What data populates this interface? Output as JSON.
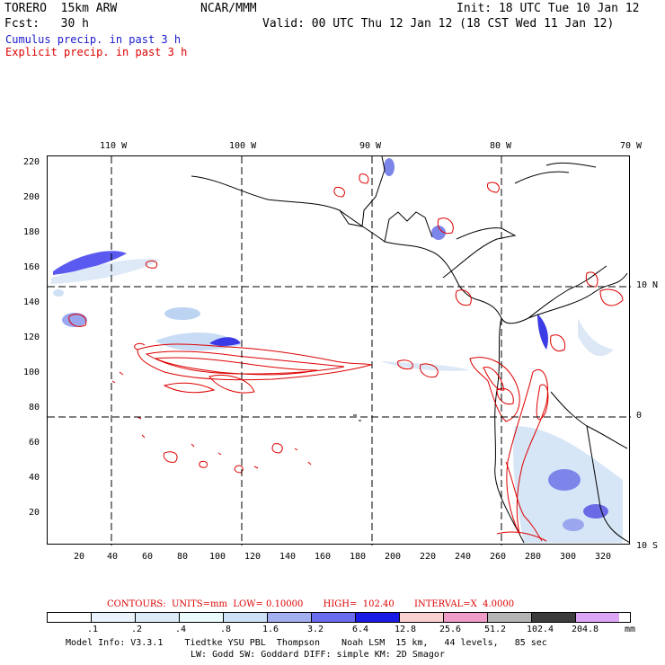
{
  "header": {
    "model": "TORERO  15km ARW",
    "institution": "NCAR/MMM",
    "init": "Init: 18 UTC Tue 10 Jan 12",
    "fcst": "Fcst:   30 h",
    "valid": "Valid: 00 UTC Thu 12 Jan 12 (18 CST Wed 11 Jan 12)",
    "legend_cumulus": "Cumulus precip. in past 3 h",
    "legend_explicit": "Explicit precip. in past 3 h"
  },
  "colors": {
    "cumulus": "#1a1acc",
    "explicit": "#dd0000",
    "land": "#000000",
    "grid": "#000000"
  },
  "map_axes": {
    "lon_labels": [
      "110 W",
      "100 W",
      "90 W",
      "80 W",
      "70 W"
    ],
    "lat_labels": [
      "10 N",
      "0",
      "10 S"
    ],
    "x_ticks": [
      "20",
      "40",
      "60",
      "80",
      "100",
      "120",
      "140",
      "160",
      "180",
      "200",
      "220",
      "240",
      "260",
      "280",
      "300",
      "320"
    ],
    "y_ticks": [
      "220",
      "200",
      "180",
      "160",
      "140",
      "120",
      "100",
      "80",
      "60",
      "40",
      "20"
    ]
  },
  "contour_info": "CONTOURS:  UNITS=mm  LOW= 0.10000       HIGH=  102.40       INTERVAL=X  4.0000",
  "colorbar": {
    "levels": [
      ".1",
      ".2",
      ".4",
      ".8",
      "1.6",
      "3.2",
      "6.4",
      "12.8",
      "25.6",
      "51.2",
      "102.4",
      "204.8"
    ],
    "units": "mm",
    "colors": [
      "#ffffff",
      "#eaf3fb",
      "#dcebf7",
      "#e9fbfb",
      "#cde2f7",
      "#a4aff0",
      "#6b6bf0",
      "#1a1ae6",
      "#fad1d1",
      "#f09cc8",
      "#b4b4b4",
      "#3c3c3c",
      "#dca8f5"
    ]
  },
  "model_info_1": "Model Info: V3.3.1    Tiedtke YSU PBL  Thompson    Noah LSM  15 km,   44 levels,   85 sec",
  "model_info_2": "LW: Godd SW: Goddard DIFF: simple KM: 2D Smagor"
}
